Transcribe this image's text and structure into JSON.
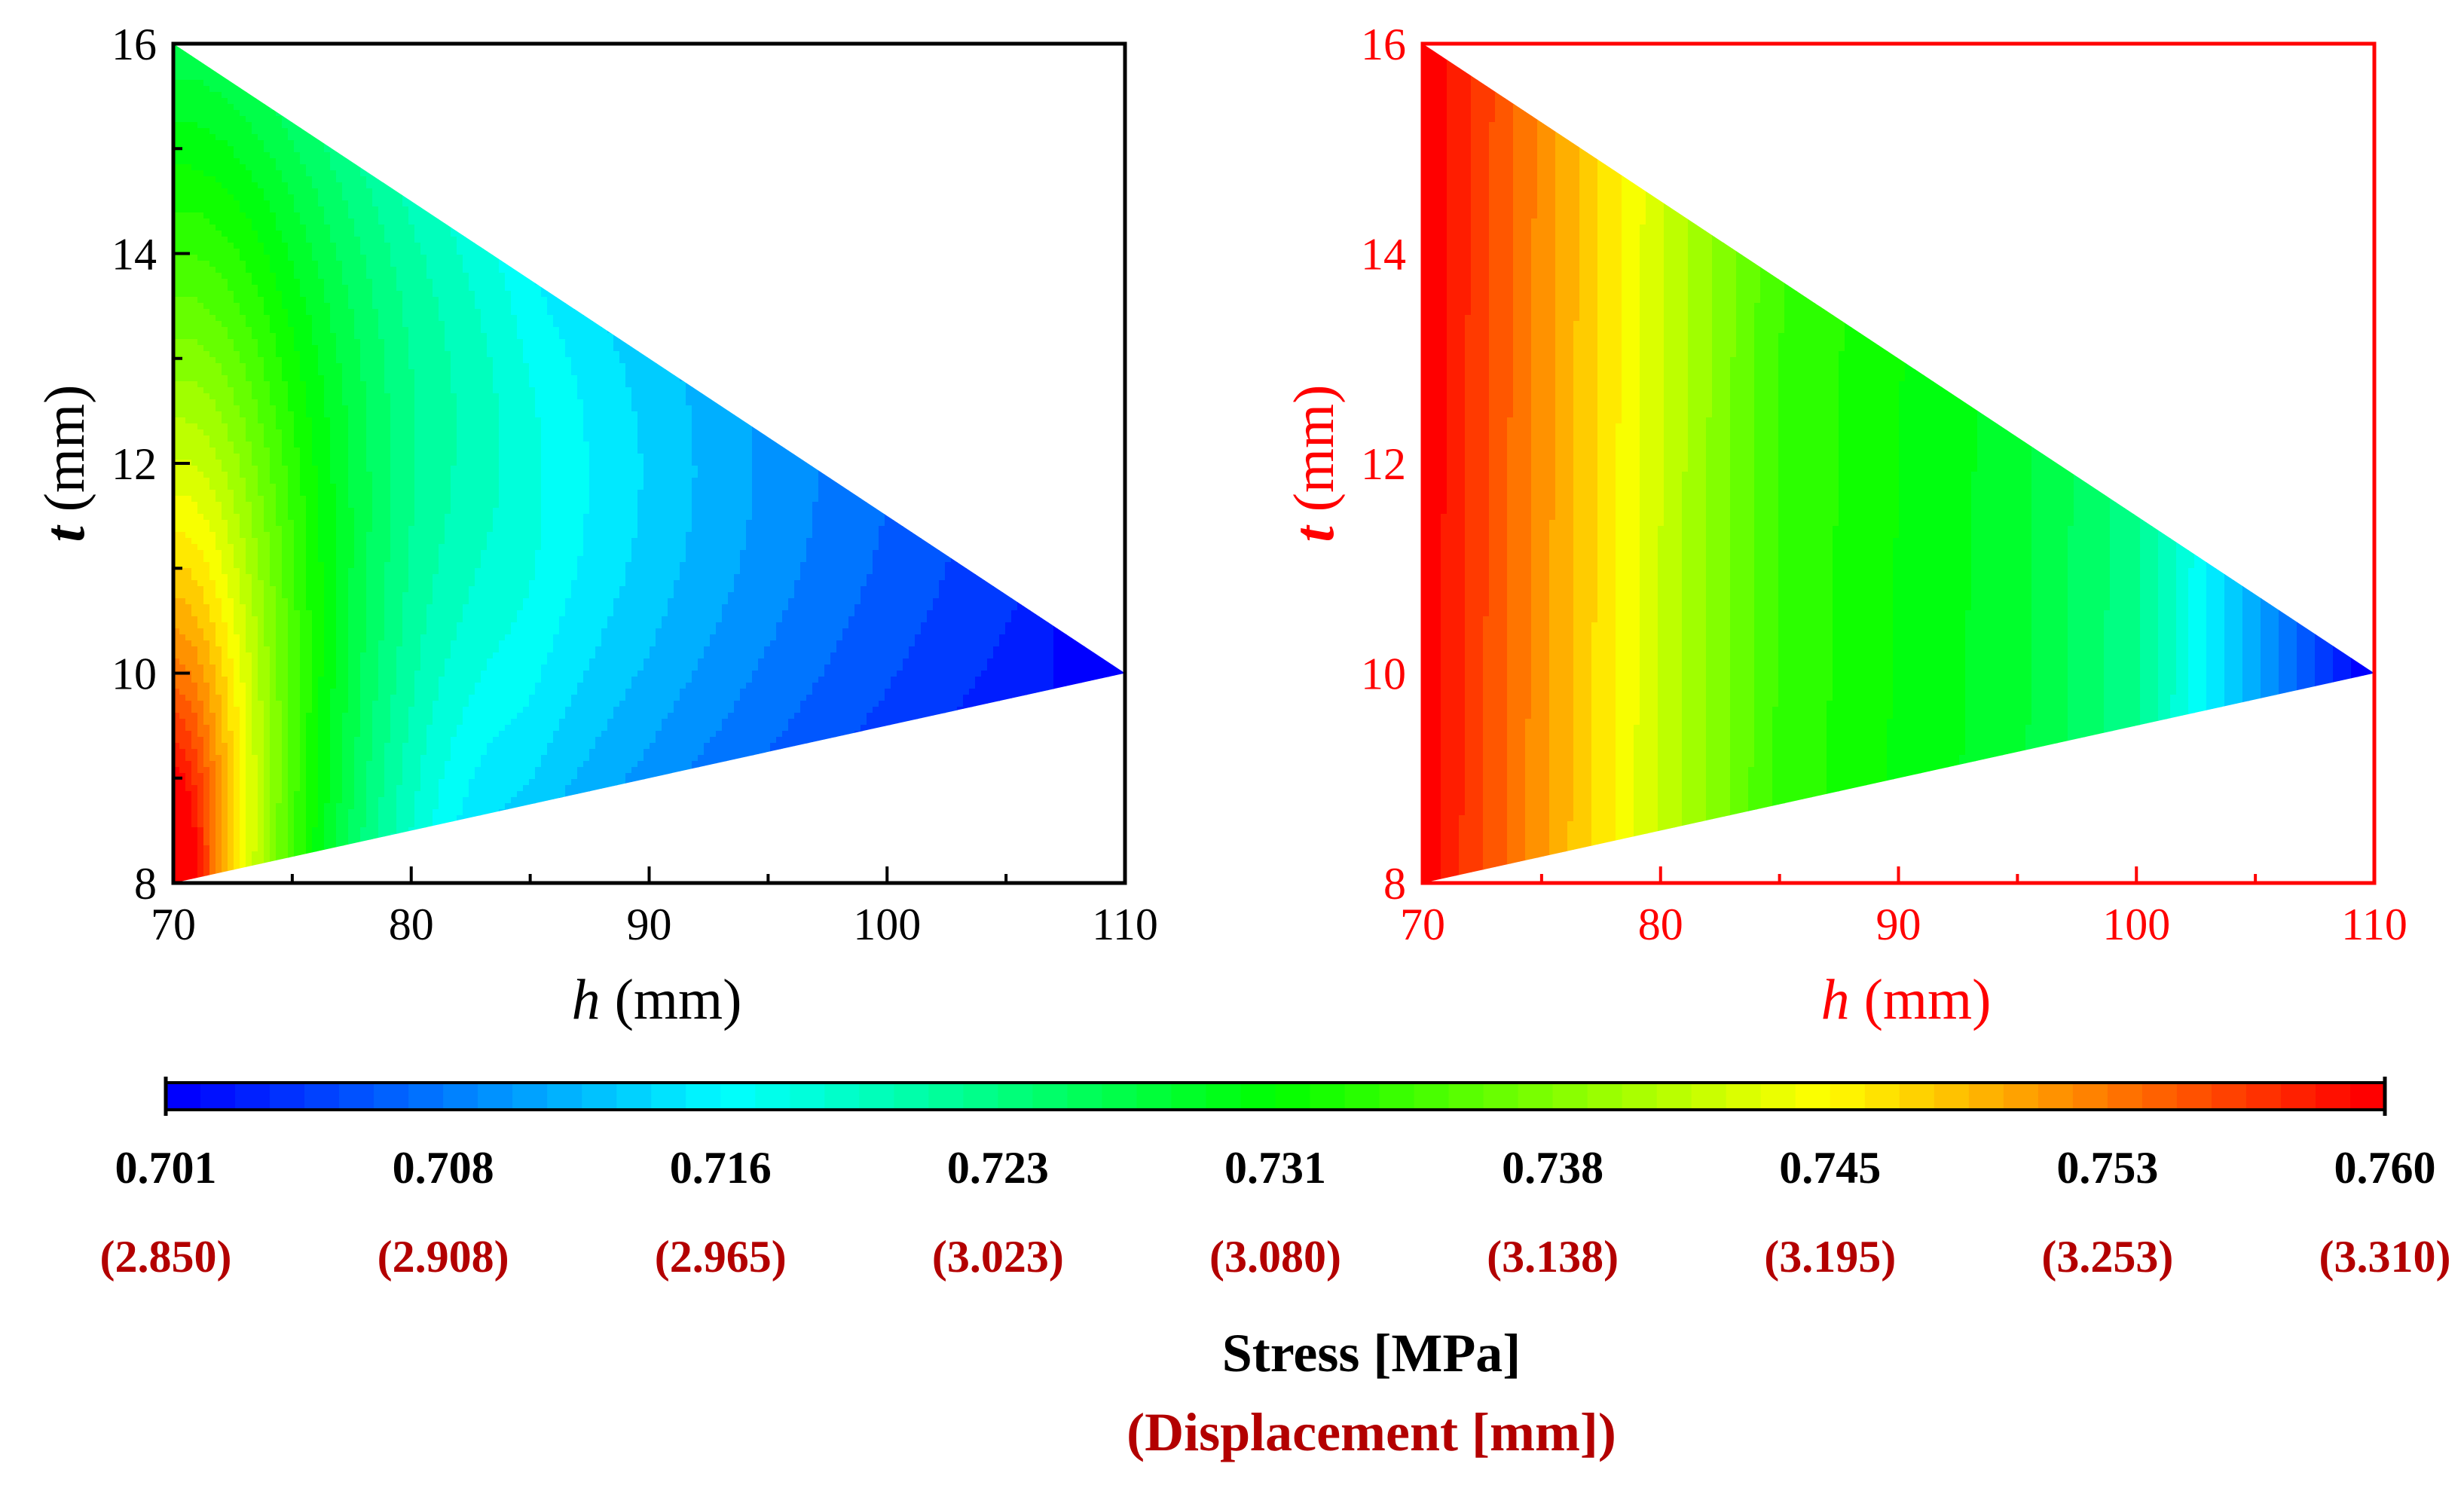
{
  "chart_data": [
    {
      "type": "heatmap",
      "name": "stress",
      "axis_color": "#000000",
      "region": "triangle",
      "x_label_var": "h",
      "x_label_unit": "(mm)",
      "y_label_var": "t",
      "y_label_unit": "(mm)",
      "xlim": [
        70,
        110
      ],
      "ylim": [
        8,
        16
      ],
      "x_ticks": [
        70,
        80,
        90,
        100,
        110
      ],
      "y_ticks": [
        8,
        10,
        12,
        14,
        16
      ],
      "x_tick_labels": [
        "70",
        "80",
        "90",
        "100",
        "110"
      ],
      "y_tick_labels": [
        "8",
        "10",
        "12",
        "14",
        "16"
      ],
      "polygon": [
        [
          70,
          16
        ],
        [
          110,
          10
        ],
        [
          70,
          8
        ]
      ],
      "value_range": [
        0.701,
        0.76
      ],
      "value_unit": "MPa",
      "ridge": [
        [
          70,
          14.0
        ],
        [
          75,
          13.5
        ],
        [
          80,
          12.5
        ],
        [
          83,
          10.5
        ],
        [
          85,
          8.8
        ]
      ],
      "corners": {
        "bottom_left": 0.76,
        "top_left": 0.735,
        "right_tip": 0.703
      }
    },
    {
      "type": "heatmap",
      "name": "displacement",
      "axis_color": "#ff0000",
      "region": "triangle",
      "x_label_var": "h",
      "x_label_unit": "(mm)",
      "y_label_var": "t",
      "y_label_unit": "(mm)",
      "xlim": [
        70,
        110
      ],
      "ylim": [
        8,
        16
      ],
      "x_ticks": [
        70,
        80,
        90,
        100,
        110
      ],
      "y_ticks": [
        8,
        10,
        12,
        14,
        16
      ],
      "x_tick_labels": [
        "70",
        "80",
        "90",
        "100",
        "110"
      ],
      "y_tick_labels": [
        "8",
        "10",
        "12",
        "14",
        "16"
      ],
      "polygon": [
        [
          70,
          16
        ],
        [
          110,
          10
        ],
        [
          70,
          8
        ]
      ],
      "value_range": [
        2.85,
        3.31
      ],
      "value_unit": "mm",
      "profile_by_h": [
        [
          70,
          3.31
        ],
        [
          75,
          3.24
        ],
        [
          80,
          3.17
        ],
        [
          85,
          3.105
        ],
        [
          90,
          3.08
        ],
        [
          95,
          3.06
        ],
        [
          100,
          3.02
        ],
        [
          105,
          2.93
        ],
        [
          110,
          2.85
        ]
      ]
    }
  ],
  "colorbar": {
    "colors": [
      "#0000ff",
      "#00ffff",
      "#00ff00",
      "#ffff00",
      "#ff0000"
    ],
    "stress_labels": [
      "0.701",
      "0.708",
      "0.716",
      "0.723",
      "0.731",
      "0.738",
      "0.745",
      "0.753",
      "0.760"
    ],
    "displacement_labels": [
      "(2.850)",
      "(2.908)",
      "(2.965)",
      "(3.023)",
      "(3.080)",
      "(3.138)",
      "(3.195)",
      "(3.253)",
      "(3.310)"
    ],
    "title": "Stress [MPa]",
    "subtitle": "(Displacement [mm])",
    "title_color": "#000000",
    "subtitle_color": "#b30000"
  }
}
